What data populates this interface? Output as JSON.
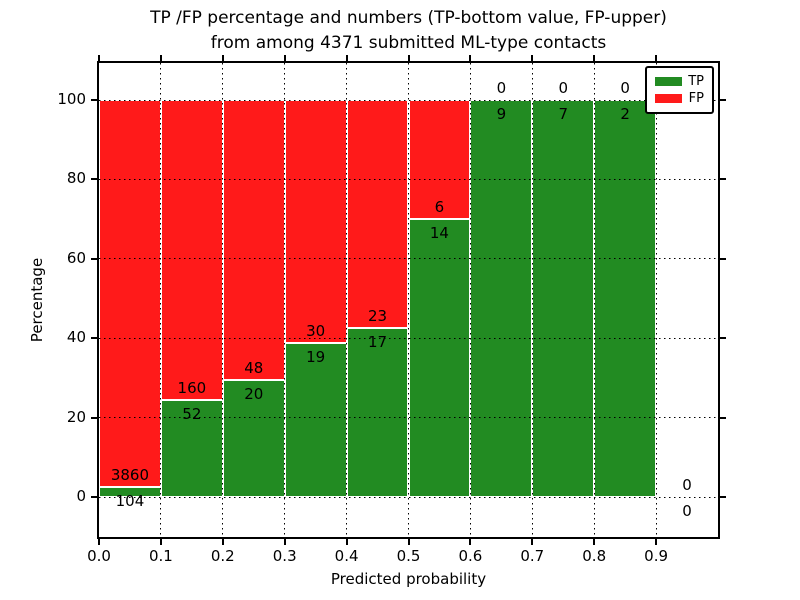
{
  "chart_data": {
    "type": "bar",
    "subtype": "stacked-percentage-histogram",
    "title_lines": [
      "TP /FP percentage and numbers (TP-bottom value, FP-upper)",
      "from among 4371 submitted ML-type contacts"
    ],
    "xlabel": "Predicted probability",
    "ylabel": "Percentage",
    "total_submitted": 4371,
    "x_tick_labels": [
      "0.0",
      "0.1",
      "0.2",
      "0.3",
      "0.4",
      "0.5",
      "0.6",
      "0.7",
      "0.8",
      "0.9"
    ],
    "y_ticks": [
      0,
      20,
      40,
      60,
      80,
      100
    ],
    "xlim": [
      0.0,
      1.0
    ],
    "ylim": [
      -10.6,
      109.8
    ],
    "grid": "dotted-black-both-axes",
    "bar_edge_color": "#ffffff",
    "colors": {
      "tp": "#228b22",
      "fp": "#ff1a1a"
    },
    "legend": {
      "position": "upper right",
      "entries": [
        {
          "label": "TP",
          "color": "#228b22"
        },
        {
          "label": "FP",
          "color": "#ff1a1a"
        }
      ]
    },
    "bins": [
      {
        "x0": 0.0,
        "x1": 0.1,
        "tp": 104,
        "fp": 3860,
        "tp_pct": 2.62,
        "fp_pct": 97.38
      },
      {
        "x0": 0.1,
        "x1": 0.2,
        "tp": 52,
        "fp": 160,
        "tp_pct": 24.53,
        "fp_pct": 75.47
      },
      {
        "x0": 0.2,
        "x1": 0.3,
        "tp": 20,
        "fp": 48,
        "tp_pct": 29.41,
        "fp_pct": 70.59
      },
      {
        "x0": 0.3,
        "x1": 0.4,
        "tp": 19,
        "fp": 30,
        "tp_pct": 38.78,
        "fp_pct": 61.22
      },
      {
        "x0": 0.4,
        "x1": 0.5,
        "tp": 17,
        "fp": 23,
        "tp_pct": 42.5,
        "fp_pct": 57.5
      },
      {
        "x0": 0.5,
        "x1": 0.6,
        "tp": 14,
        "fp": 6,
        "tp_pct": 70.0,
        "fp_pct": 30.0
      },
      {
        "x0": 0.6,
        "x1": 0.7,
        "tp": 9,
        "fp": 0,
        "tp_pct": 100.0,
        "fp_pct": 0.0
      },
      {
        "x0": 0.7,
        "x1": 0.8,
        "tp": 7,
        "fp": 0,
        "tp_pct": 100.0,
        "fp_pct": 0.0
      },
      {
        "x0": 0.8,
        "x1": 0.9,
        "tp": 2,
        "fp": 0,
        "tp_pct": 100.0,
        "fp_pct": 0.0
      },
      {
        "x0": 0.9,
        "x1": 1.0,
        "tp": 0,
        "fp": 0,
        "tp_pct": 0.0,
        "fp_pct": 0.0
      }
    ]
  }
}
